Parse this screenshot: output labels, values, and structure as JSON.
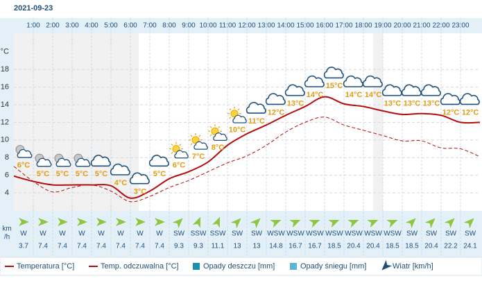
{
  "chart_data": {
    "type": "line",
    "title": "2021-09-23",
    "y_label": "°C",
    "xlim": [
      0,
      24
    ],
    "xticks": [
      {
        "value": 1,
        "label": "1:00"
      },
      {
        "value": 2,
        "label": "2:00"
      },
      {
        "value": 3,
        "label": "3:00"
      },
      {
        "value": 4,
        "label": "4:00"
      },
      {
        "value": 5,
        "label": "5:00"
      },
      {
        "value": 6,
        "label": "6:00"
      },
      {
        "value": 7,
        "label": "7:00"
      },
      {
        "value": 8,
        "label": "8:00"
      },
      {
        "value": 9,
        "label": "9:00"
      },
      {
        "value": 10,
        "label": "10:00"
      },
      {
        "value": 11,
        "label": "11:00"
      },
      {
        "value": 12,
        "label": "12:00"
      },
      {
        "value": 13,
        "label": "13:00"
      },
      {
        "value": 14,
        "label": "14:00"
      },
      {
        "value": 15,
        "label": "15:00"
      },
      {
        "value": 16,
        "label": "16:00"
      },
      {
        "value": 17,
        "label": "17:00"
      },
      {
        "value": 18,
        "label": "18:00"
      },
      {
        "value": 19,
        "label": "19:00"
      },
      {
        "value": 20,
        "label": "20:00"
      },
      {
        "value": 21,
        "label": "21:00"
      },
      {
        "value": 22,
        "label": "22:00"
      },
      {
        "value": 23,
        "label": "23:00"
      }
    ],
    "ylim": [
      2,
      22
    ],
    "yticks": [
      4,
      6,
      8,
      10,
      12,
      14,
      16,
      18
    ],
    "grid": true,
    "x": [
      0,
      1,
      2,
      3,
      4,
      5,
      6,
      7,
      8,
      9,
      10,
      11,
      12,
      13,
      14,
      15,
      16,
      17,
      18,
      19,
      20,
      21,
      22,
      23,
      24
    ],
    "series": [
      {
        "name": "Temperatura [°C]",
        "color": "#b30d0d",
        "dashed": false,
        "values": [
          5.9,
          5.3,
          4.9,
          4.9,
          4.9,
          4.8,
          3.4,
          4.2,
          5.6,
          6.4,
          7.5,
          9.4,
          10.7,
          11.7,
          12.8,
          13.8,
          14.9,
          14.1,
          13.8,
          13.3,
          12.9,
          13.0,
          12.8,
          12.0,
          12.0
        ]
      },
      {
        "name": "Temp. odczuwalna [°C]",
        "color": "#b30d0d",
        "dashed": true,
        "values": [
          7.0,
          5.3,
          4.1,
          4.6,
          4.9,
          4.2,
          3.0,
          3.6,
          4.6,
          5.4,
          6.4,
          7.4,
          8.2,
          9.4,
          10.9,
          12.0,
          12.6,
          11.7,
          11.1,
          10.5,
          9.9,
          9.9,
          9.1,
          9.0,
          8.1
        ]
      }
    ],
    "temp_labels": {
      "x": [
        0.5,
        1.5,
        2.5,
        3.5,
        4.5,
        5.5,
        6.5,
        7.5,
        8.5,
        9.5,
        10.5,
        11.5,
        12.5,
        13.5,
        14.5,
        15.5,
        16.5,
        17.5,
        18.5,
        19.5,
        20.5,
        21.5,
        22.5,
        23.5
      ],
      "values": [
        6,
        5,
        5,
        5,
        5,
        4,
        3,
        5,
        6,
        7,
        8,
        10,
        11,
        12,
        13,
        14,
        15,
        14,
        14,
        13,
        13,
        13,
        12,
        12
      ],
      "value_labels": [
        "6°C",
        "5°C",
        "5°C",
        "5°C",
        "5°C",
        "4°C",
        "3°C",
        "5°C",
        "6°C",
        "7°C",
        "8°C",
        "10°C",
        "11°C",
        "12°C",
        "13°C",
        "14°C",
        "15°C",
        "14°C",
        "14°C",
        "13°C",
        "13°C",
        "13°C",
        "12°C",
        "12°C"
      ],
      "color": "#e39b12"
    },
    "wind": {
      "unit_label": [
        "km",
        "/h"
      ],
      "color": "#8dc63f",
      "directions": [
        "W",
        "W",
        "W",
        "W",
        "W",
        "W",
        "W",
        "W",
        "SW",
        "SSW",
        "SSW",
        "SW",
        "SW",
        "WSW",
        "WSW",
        "WSW",
        "WSW",
        "WSW",
        "WSW",
        "WSW",
        "SW",
        "SW",
        "SW",
        "SW"
      ],
      "speeds": [
        3.7,
        7.4,
        7.4,
        7.4,
        7.4,
        7.4,
        7.4,
        7.4,
        9.3,
        9.3,
        11.1,
        13,
        13,
        14.8,
        16.7,
        16.7,
        18.5,
        20.4,
        20.4,
        18.5,
        18.5,
        20.4,
        22.2,
        24.1
      ]
    },
    "legend_extra": [
      {
        "name": "Opady deszczu [mm]",
        "color": "#1a8fae"
      },
      {
        "name": "Opady śniegu [mm]",
        "color": "#5ab6d2"
      },
      {
        "name": "Wiatr [km/h]",
        "color": "#1d4f7a"
      }
    ]
  }
}
